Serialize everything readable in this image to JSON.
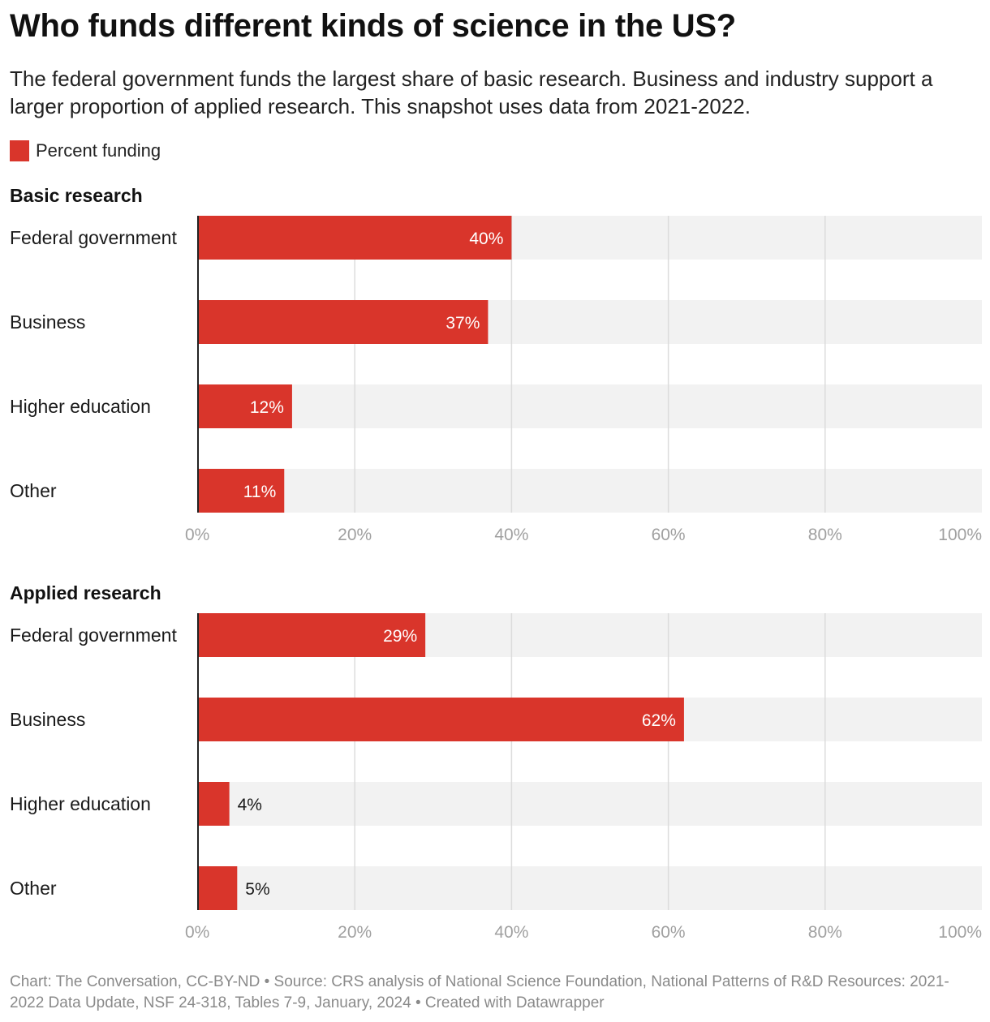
{
  "title": "Who funds different kinds of science in the US?",
  "subtitle": "The federal government funds the largest share of basic research. Business and industry support a larger proportion of applied research. This snapshot uses data from 2021-2022.",
  "legend": {
    "label": "Percent funding",
    "color": "#d9352b"
  },
  "colors": {
    "bar": "#d9352b",
    "track": "#f2f2f2",
    "grid": "#dcdcdc",
    "axis": "#222222"
  },
  "footer": "Chart: The Conversation, CC-BY-ND • Source: CRS analysis of National Science Foundation, National Patterns of R&D Resources: 2021-2022 Data Update, NSF 24-318, Tables 7-9, January, 2024 • Created with Datawrapper",
  "chart_data": [
    {
      "type": "bar",
      "orientation": "horizontal",
      "title": "Basic research",
      "categories": [
        "Federal government",
        "Business",
        "Higher education",
        "Other"
      ],
      "series": [
        {
          "name": "Percent funding",
          "values": [
            40,
            37,
            12,
            11
          ]
        }
      ],
      "value_labels": [
        "40%",
        "37%",
        "12%",
        "11%"
      ],
      "xlim": [
        0,
        100
      ],
      "x_ticks": [
        0,
        20,
        40,
        60,
        80,
        100
      ],
      "x_tick_labels": [
        "0%",
        "20%",
        "40%",
        "60%",
        "80%",
        "100%"
      ],
      "grid": true
    },
    {
      "type": "bar",
      "orientation": "horizontal",
      "title": "Applied research",
      "categories": [
        "Federal government",
        "Business",
        "Higher education",
        "Other"
      ],
      "series": [
        {
          "name": "Percent funding",
          "values": [
            29,
            62,
            4,
            5
          ]
        }
      ],
      "value_labels": [
        "29%",
        "62%",
        "4%",
        "5%"
      ],
      "xlim": [
        0,
        100
      ],
      "x_ticks": [
        0,
        20,
        40,
        60,
        80,
        100
      ],
      "x_tick_labels": [
        "0%",
        "20%",
        "40%",
        "60%",
        "80%",
        "100%"
      ],
      "grid": true
    }
  ]
}
